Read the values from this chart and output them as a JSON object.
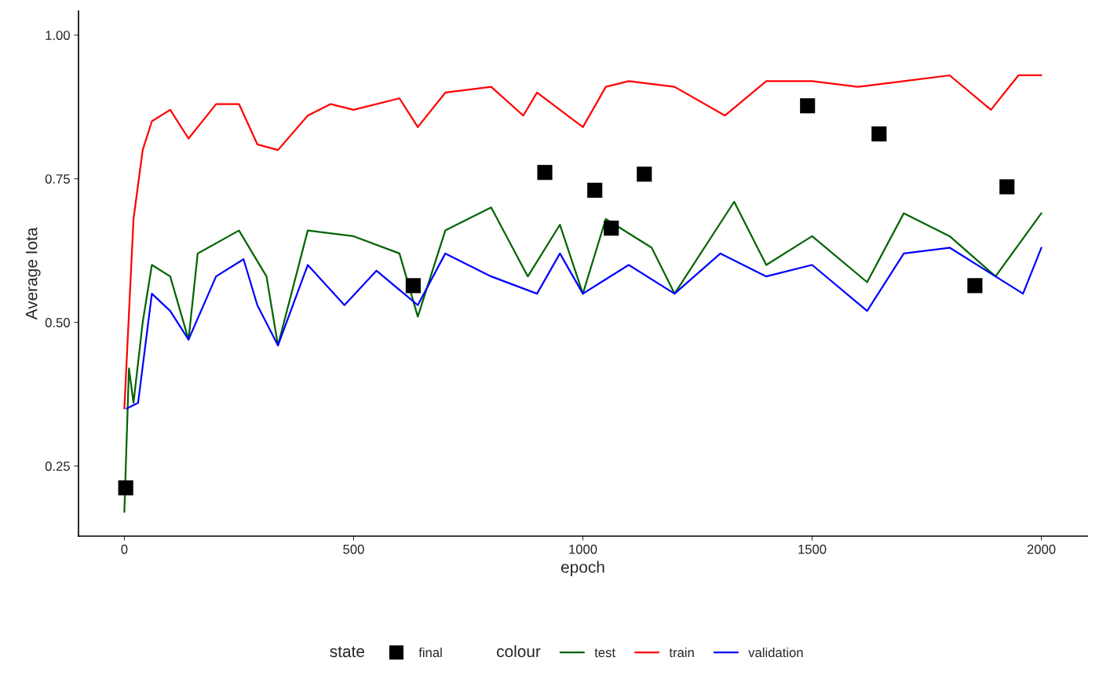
{
  "chart_data": {
    "type": "line",
    "xlabel": "epoch",
    "ylabel": "Average Iota",
    "legend_title": [
      "state",
      "colour"
    ],
    "legend": "bottom",
    "grid": false,
    "xlim": [
      -100,
      2100
    ],
    "xticks": [
      0,
      500,
      1000,
      1500,
      2000
    ],
    "ylim": [
      0.128,
      1.042
    ],
    "yticks": [
      {
        "value": 0.25,
        "label": "0.25"
      },
      {
        "value": 0.5,
        "label": "0.50"
      },
      {
        "value": 0.75,
        "label": "0.75"
      },
      {
        "value": 1.0,
        "label": "1.00"
      }
    ],
    "series": [
      {
        "name": "final",
        "type": "scatter",
        "marker": "square",
        "color": "#000000",
        "x": [
          3,
          630,
          917,
          1026,
          1062,
          1134,
          1490,
          1646,
          1855,
          1925
        ],
        "values": [
          0.212,
          0.564,
          0.761,
          0.73,
          0.664,
          0.758,
          0.877,
          0.828,
          0.564,
          0.736
        ]
      },
      {
        "name": "test",
        "color": "#006400",
        "x": [
          0,
          10,
          20,
          40,
          60,
          100,
          140,
          160,
          250,
          310,
          335,
          400,
          500,
          600,
          640,
          700,
          800,
          880,
          950,
          1000,
          1050,
          1150,
          1200,
          1330,
          1400,
          1500,
          1620,
          1700,
          1800,
          1900,
          2000
        ],
        "values": [
          0.17,
          0.42,
          0.36,
          0.5,
          0.6,
          0.58,
          0.47,
          0.62,
          0.66,
          0.58,
          0.46,
          0.66,
          0.65,
          0.62,
          0.51,
          0.66,
          0.7,
          0.58,
          0.67,
          0.55,
          0.68,
          0.63,
          0.55,
          0.71,
          0.6,
          0.65,
          0.57,
          0.69,
          0.65,
          0.58,
          0.69
        ]
      },
      {
        "name": "train",
        "color": "#ff0000",
        "x": [
          0,
          20,
          40,
          60,
          100,
          140,
          200,
          250,
          290,
          335,
          400,
          450,
          500,
          600,
          640,
          700,
          800,
          870,
          900,
          1000,
          1050,
          1100,
          1200,
          1310,
          1400,
          1500,
          1600,
          1700,
          1800,
          1890,
          1950,
          2000
        ],
        "values": [
          0.35,
          0.68,
          0.8,
          0.85,
          0.87,
          0.82,
          0.88,
          0.88,
          0.81,
          0.8,
          0.86,
          0.88,
          0.87,
          0.89,
          0.84,
          0.9,
          0.91,
          0.86,
          0.9,
          0.84,
          0.91,
          0.92,
          0.91,
          0.86,
          0.92,
          0.92,
          0.91,
          0.92,
          0.93,
          0.87,
          0.93,
          0.93
        ]
      },
      {
        "name": "validation",
        "color": "#0000ff",
        "x": [
          5,
          30,
          60,
          100,
          140,
          200,
          260,
          290,
          335,
          400,
          480,
          550,
          640,
          700,
          800,
          900,
          950,
          1000,
          1100,
          1200,
          1300,
          1400,
          1500,
          1620,
          1700,
          1800,
          1900,
          1960,
          2000
        ],
        "values": [
          0.35,
          0.36,
          0.55,
          0.52,
          0.47,
          0.58,
          0.61,
          0.53,
          0.46,
          0.6,
          0.53,
          0.59,
          0.53,
          0.62,
          0.58,
          0.55,
          0.62,
          0.55,
          0.6,
          0.55,
          0.62,
          0.58,
          0.6,
          0.52,
          0.62,
          0.63,
          0.58,
          0.55,
          0.63
        ]
      }
    ]
  }
}
